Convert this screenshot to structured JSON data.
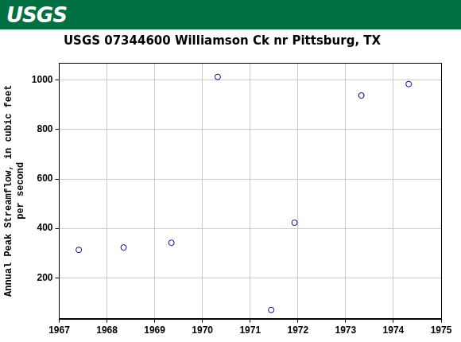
{
  "header": {
    "logo": "USGS"
  },
  "chart_data": {
    "type": "scatter",
    "title": "USGS 07344600 Williamson Ck nr Pittsburg, TX",
    "y_label": [
      "Annual Peak Streamflow, in cubic feet",
      "per second"
    ],
    "x": [
      1967.41,
      1968.35,
      1969.35,
      1970.32,
      1971.44,
      1971.93,
      1973.33,
      1974.32
    ],
    "values": [
      313,
      323,
      342,
      1013,
      70,
      423,
      938,
      984
    ],
    "color": "#00008b",
    "marker": "open_circle",
    "xlim": [
      1967,
      1975
    ],
    "xticks": [
      1967,
      1968,
      1969,
      1970,
      1971,
      1972,
      1973,
      1974,
      1975
    ],
    "ylim": [
      35,
      1070
    ],
    "yticks": [
      200,
      400,
      600,
      800,
      1000
    ],
    "grid": true
  }
}
